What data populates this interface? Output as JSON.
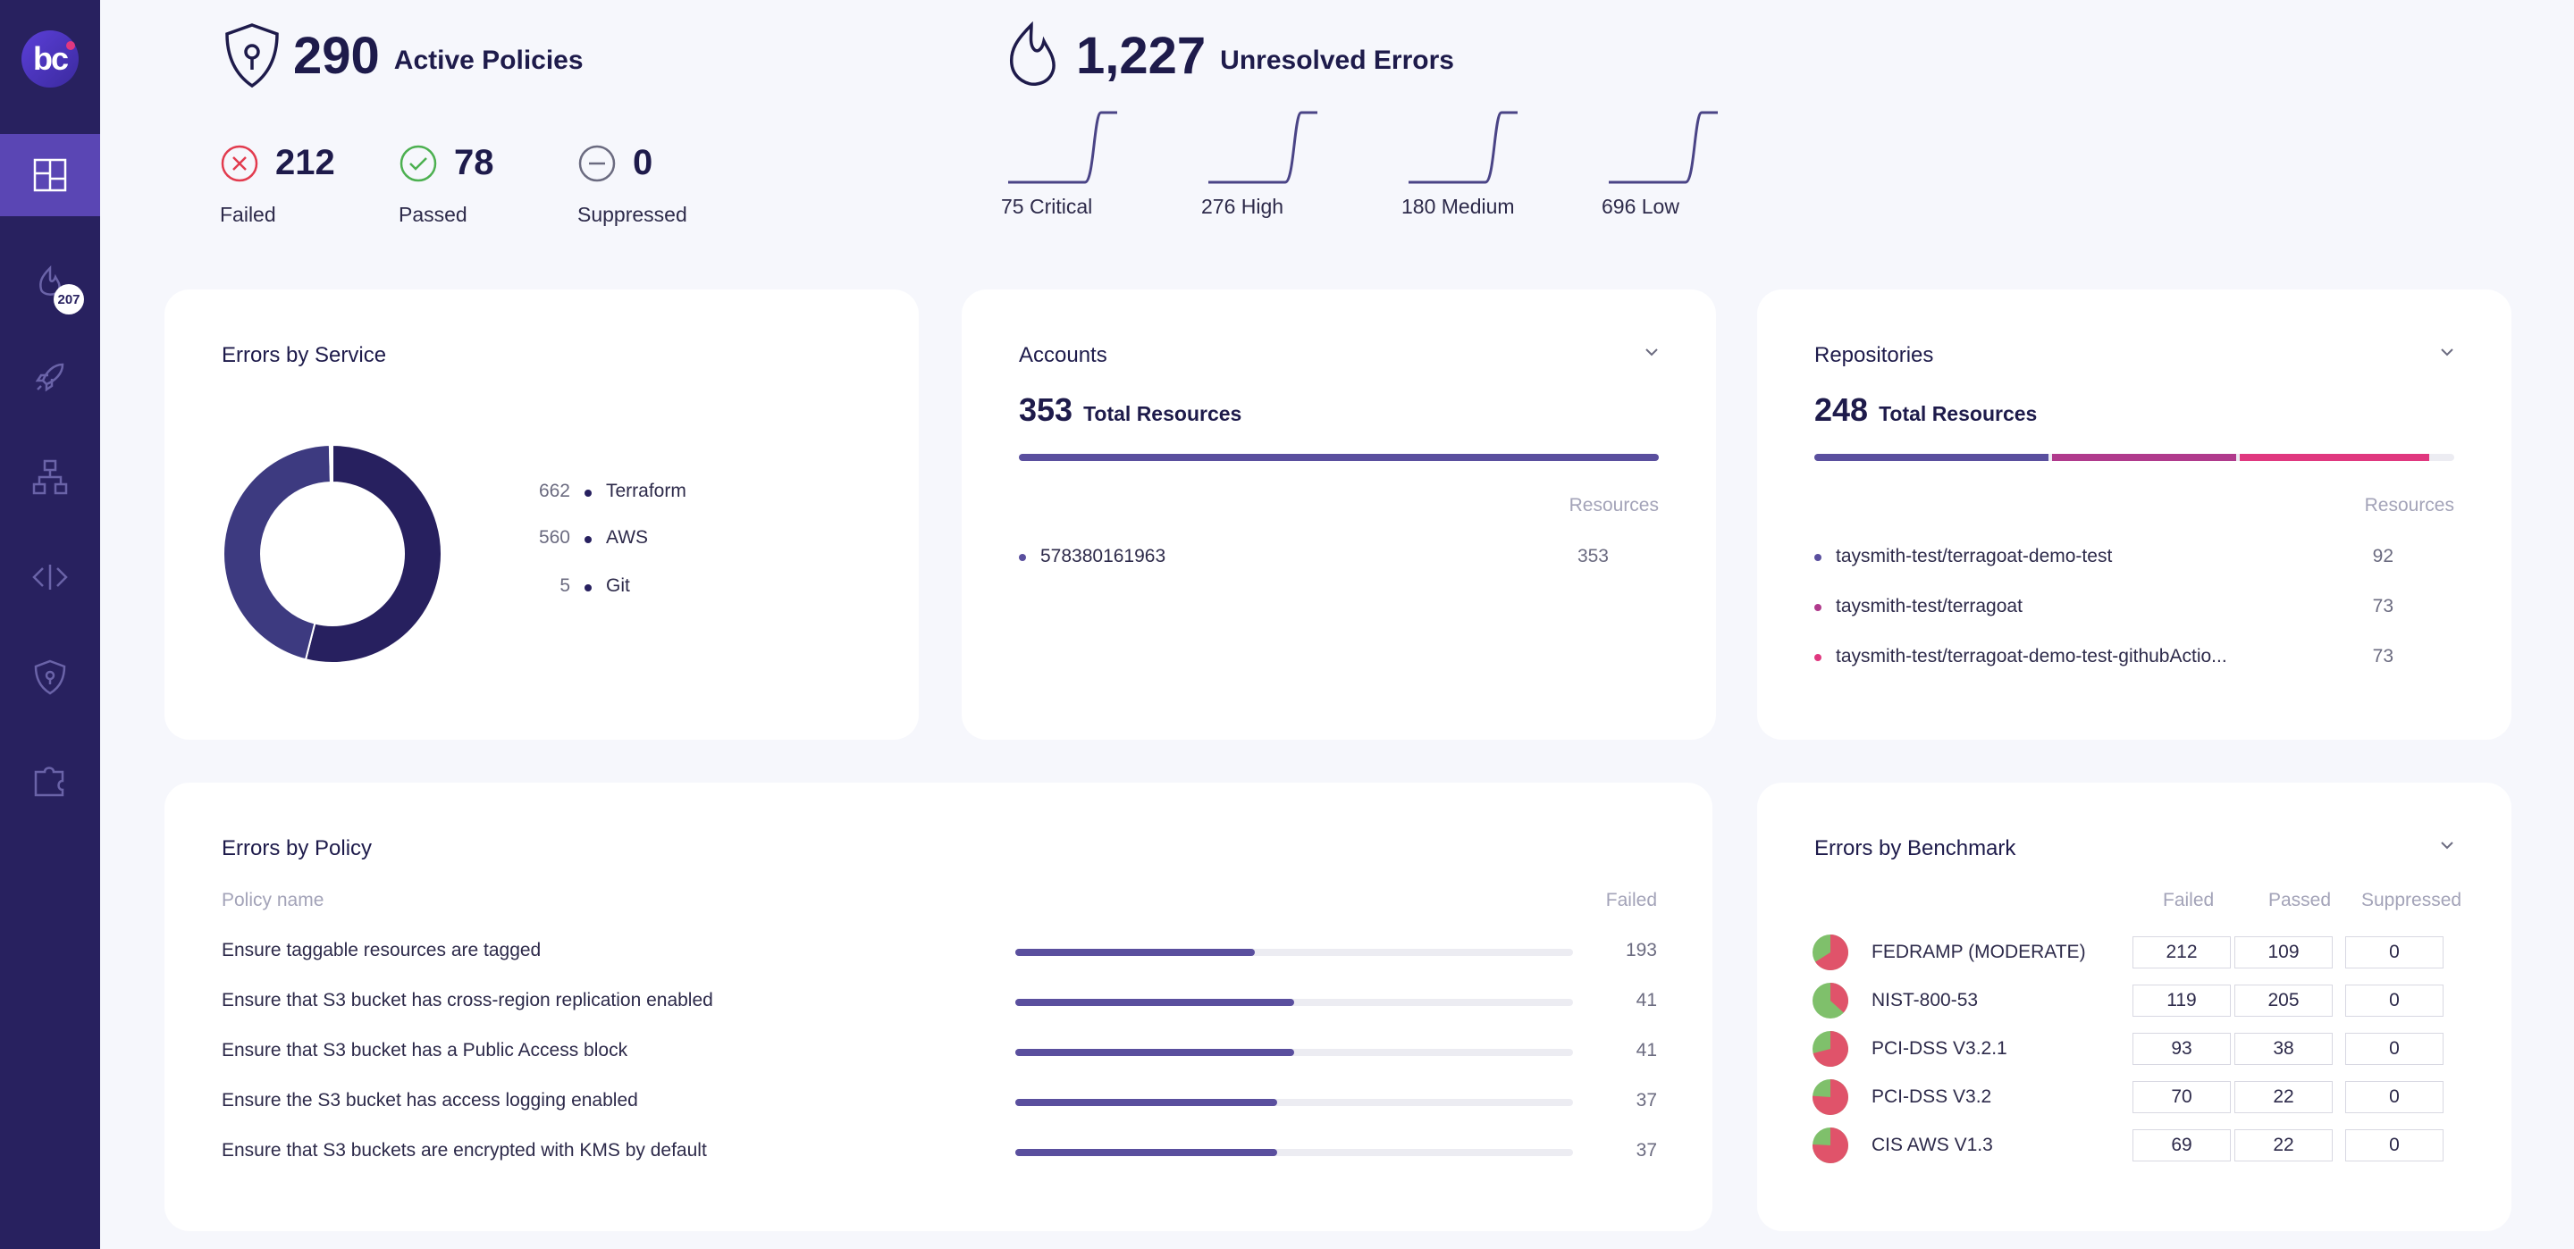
{
  "sidebar": {
    "logo_text": "bc",
    "badge": "207",
    "items": [
      {
        "icon": "dashboard-icon",
        "active": true
      },
      {
        "icon": "fire-icon",
        "active": false
      },
      {
        "icon": "rocket-icon",
        "active": false
      },
      {
        "icon": "sitemap-icon",
        "active": false
      },
      {
        "icon": "code-icon",
        "active": false
      },
      {
        "icon": "shield-icon",
        "active": false
      },
      {
        "icon": "puzzle-icon",
        "active": false
      }
    ]
  },
  "summary": {
    "policies": {
      "count": "290",
      "label": "Active Policies",
      "failed": {
        "count": "212",
        "label": "Failed"
      },
      "passed": {
        "count": "78",
        "label": "Passed"
      },
      "suppressed": {
        "count": "0",
        "label": "Suppressed"
      }
    },
    "errors": {
      "count": "1,227",
      "label": "Unresolved Errors",
      "severities": [
        {
          "label": "75 Critical"
        },
        {
          "label": "276 High"
        },
        {
          "label": "180 Medium"
        },
        {
          "label": "696 Low"
        }
      ]
    }
  },
  "errors_by_service": {
    "title": "Errors by Service",
    "colors": {
      "primary": "#27205f",
      "secondary": "#3d3a80"
    },
    "items": [
      {
        "value": "662",
        "label": "Terraform"
      },
      {
        "value": "560",
        "label": "AWS"
      },
      {
        "value": "5",
        "label": "Git"
      }
    ]
  },
  "accounts": {
    "title": "Accounts",
    "total": "353",
    "total_label": "Total Resources",
    "col_header": "Resources",
    "rows": [
      {
        "name": "578380161963",
        "value": "353"
      }
    ]
  },
  "repositories": {
    "title": "Repositories",
    "total": "248",
    "total_label": "Total Resources",
    "col_header": "Resources",
    "rows": [
      {
        "name": "taysmith-test/terragoat-demo-test",
        "value": "92",
        "color": "#5a4f9e"
      },
      {
        "name": "taysmith-test/terragoat",
        "value": "73",
        "color": "#b03a8c"
      },
      {
        "name": "taysmith-test/terragoat-demo-test-githubActio...",
        "value": "73",
        "color": "#e0387f"
      }
    ]
  },
  "errors_by_policy": {
    "title": "Errors by Policy",
    "col_name": "Policy name",
    "col_failed": "Failed",
    "rows": [
      {
        "name": "Ensure taggable resources are tagged",
        "failed": "193",
        "fill": 0.43
      },
      {
        "name": "Ensure that S3 bucket has cross-region replication enabled",
        "failed": "41",
        "fill": 0.5
      },
      {
        "name": "Ensure that S3 bucket has a Public Access block",
        "failed": "41",
        "fill": 0.5
      },
      {
        "name": "Ensure the S3 bucket has access logging enabled",
        "failed": "37",
        "fill": 0.47
      },
      {
        "name": "Ensure that S3 buckets are encrypted with KMS by default",
        "failed": "37",
        "fill": 0.47
      }
    ]
  },
  "errors_by_benchmark": {
    "title": "Errors by Benchmark",
    "col_failed": "Failed",
    "col_passed": "Passed",
    "col_suppressed": "Suppressed",
    "rows": [
      {
        "name": "FEDRAMP (MODERATE)",
        "failed": "212",
        "passed": "109",
        "suppressed": "0"
      },
      {
        "name": "NIST-800-53",
        "failed": "119",
        "passed": "205",
        "suppressed": "0"
      },
      {
        "name": "PCI-DSS V3.2.1",
        "failed": "93",
        "passed": "38",
        "suppressed": "0"
      },
      {
        "name": "PCI-DSS V3.2",
        "failed": "70",
        "passed": "22",
        "suppressed": "0"
      },
      {
        "name": "CIS AWS V1.3",
        "failed": "69",
        "passed": "22",
        "suppressed": "0"
      }
    ]
  }
}
